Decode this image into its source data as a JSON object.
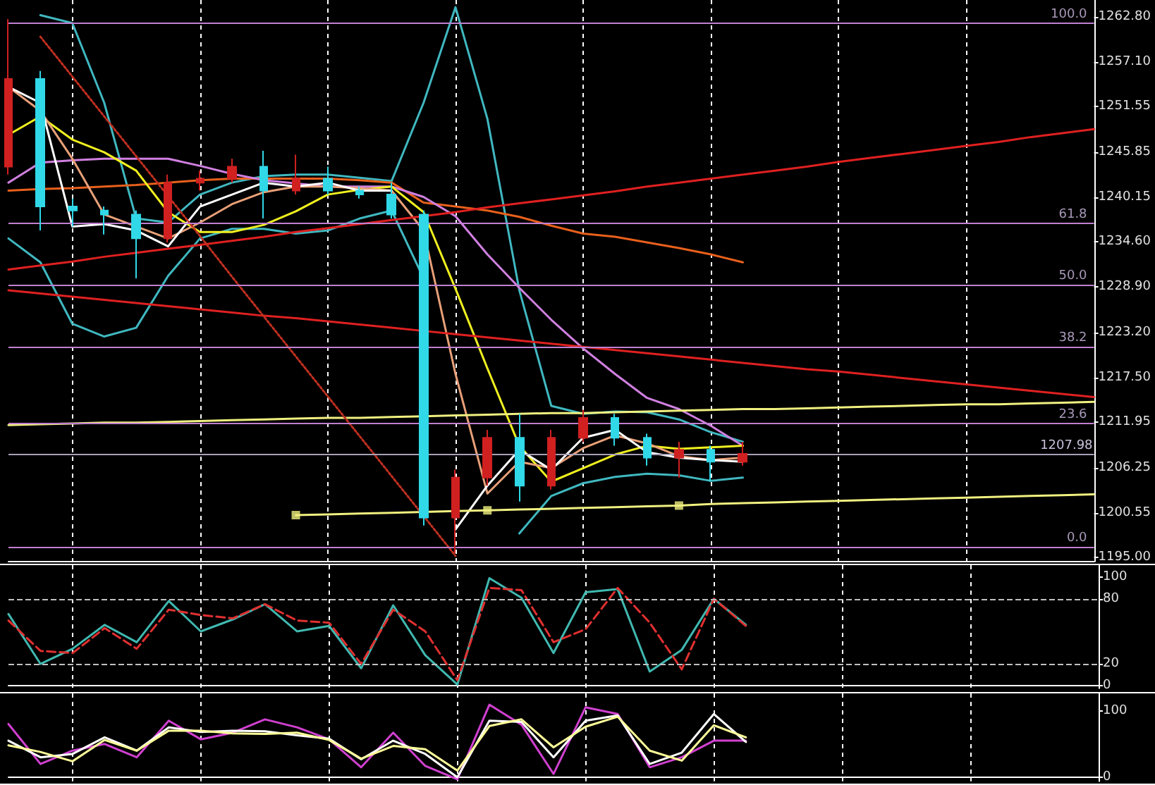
{
  "chart_data": [
    {
      "type": "candlestick",
      "categories": [
        null,
        null,
        null,
        null,
        null,
        null,
        null,
        null,
        null,
        null,
        null,
        null,
        null,
        null,
        null,
        null,
        null,
        null,
        null,
        null,
        null,
        null,
        null,
        null,
        null,
        null,
        null,
        null,
        null,
        null,
        null,
        null,
        null,
        null,
        null
      ],
      "ylim": [
        1194.5,
        1264.9
      ],
      "yticks": [
        {
          "value": 1195,
          "label": "1195.00"
        },
        {
          "value": 1200.55,
          "label": "1200.55"
        },
        {
          "value": 1206.25,
          "label": "1206.25"
        },
        {
          "value": 1211.95,
          "label": "1211.95"
        },
        {
          "value": 1217.5,
          "label": "1217.50"
        },
        {
          "value": 1223.2,
          "label": "1223.20"
        },
        {
          "value": 1228.9,
          "label": "1228.90"
        },
        {
          "value": 1234.6,
          "label": "1234.60"
        },
        {
          "value": 1240.15,
          "label": "1240.15"
        },
        {
          "value": 1245.85,
          "label": "1245.85"
        },
        {
          "value": 1251.55,
          "label": "1251.55"
        },
        {
          "value": 1257.1,
          "label": "1257.10"
        },
        {
          "value": 1262.8,
          "label": "1262.80"
        }
      ],
      "grid": "x",
      "tick_labels": "y",
      "ohlc": [
        [
          1244,
          1262.5,
          1243,
          1255
        ],
        [
          1255,
          1256,
          1236,
          1239
        ],
        [
          1239,
          1240,
          1236.5,
          1238.5
        ],
        [
          1238.5,
          1239,
          1235.5,
          1238
        ],
        [
          1238,
          1238.5,
          1230,
          1235
        ],
        [
          1235,
          1243,
          1234.5,
          1242
        ],
        [
          1242,
          1243.5,
          1241,
          1242.5
        ],
        [
          1242.5,
          1245,
          1242,
          1244
        ],
        [
          1244,
          1246,
          1237.5,
          1241
        ],
        [
          1241,
          1245.5,
          1240.5,
          1242.5
        ],
        [
          1242.5,
          1244,
          1240.5,
          1241
        ],
        [
          1241,
          1241.5,
          1240,
          1240.5
        ],
        [
          1240.5,
          1242,
          1237.5,
          1238
        ],
        [
          1238,
          1238.5,
          1199,
          1200
        ],
        [
          1200,
          1206,
          1195.5,
          1205
        ],
        [
          1205,
          1211,
          1204,
          1210
        ],
        [
          1210,
          1213,
          1202,
          1204
        ],
        [
          1204,
          1211,
          1203.5,
          1210
        ],
        [
          1210,
          1213.5,
          1209.5,
          1212.5
        ],
        [
          1212.5,
          1213,
          1209,
          1210
        ],
        [
          1210,
          1210.5,
          1206.5,
          1207.5
        ],
        [
          1207.5,
          1209.5,
          1205,
          1208.5
        ],
        [
          1208.5,
          1209,
          1204.5,
          1207
        ],
        [
          1207,
          1209.5,
          1206.5,
          1207.98
        ],
        null,
        null,
        null,
        null,
        null,
        null,
        null,
        null,
        null,
        null,
        null
      ],
      "colors": [
        "#d02020",
        "#30d8e8",
        "#30d8e8",
        "#30d8e8",
        "#30d8e8",
        "#d02020",
        "#d02020",
        "#d02020",
        "#30d8e8",
        "#d02020",
        "#30d8e8",
        "#30d8e8",
        "#30d8e8",
        "#30d8e8",
        "#d02020",
        "#d02020",
        "#30d8e8",
        "#d02020",
        "#d02020",
        "#30d8e8",
        "#30d8e8",
        "#d02020",
        "#30d8e8",
        "#d02020",
        null,
        null,
        null,
        null,
        null,
        null,
        null,
        null,
        null,
        null,
        null
      ],
      "series": [
        {
          "type": "line",
          "color": "#40b8c0",
          "values": [
            null,
            1263,
            1262,
            1252,
            1237.5,
            1237,
            1240.5,
            1242,
            1242.8,
            1243,
            1243,
            1242.6,
            1242.2,
            1252,
            1264,
            1250,
            1228.5,
            1214,
            1213,
            1213.3,
            1213.2,
            1212.3,
            1210.7,
            1209.5,
            null,
            null,
            null,
            null,
            null,
            null,
            null,
            null,
            null,
            null,
            null
          ]
        },
        {
          "type": "line",
          "color": "#40b8c0",
          "values": [
            1235,
            1232,
            1224.3,
            1222.7,
            1223.8,
            1230.3,
            1235,
            1236.2,
            1236.2,
            1235.6,
            1236,
            1237.5,
            1238.5,
            1230,
            null,
            null,
            1198,
            1202.7,
            1204.3,
            1205.1,
            1205.5,
            1205.3,
            1204.6,
            1205,
            null,
            null,
            null,
            null,
            null,
            null,
            null,
            null,
            null,
            null,
            null
          ]
        },
        {
          "type": "line",
          "color": "#e8601c",
          "values": [
            1241,
            1241.2,
            1241.3,
            1241.5,
            1241.7,
            1242,
            1242.3,
            1242.5,
            1242.5,
            1242.5,
            1242.5,
            1242.3,
            1242,
            1239.5,
            1239,
            1238.5,
            1237.7,
            1236.6,
            1235.6,
            1235.2,
            1234.5,
            1233.8,
            1233,
            1232,
            null,
            null,
            null,
            null,
            null,
            null,
            null,
            null,
            null,
            null,
            null
          ]
        },
        {
          "type": "line",
          "color": "#d080e0",
          "values": [
            1242,
            1244.5,
            1244.8,
            1245,
            1245,
            1245,
            1244.1,
            1243.1,
            1242.3,
            1241.9,
            1241.5,
            1241.5,
            1241.5,
            1240.2,
            1237.8,
            1233,
            1228.8,
            1224.8,
            1221.2,
            1218,
            1215,
            1213.6,
            1211.5,
            1209,
            null,
            null,
            null,
            null,
            null,
            null,
            null,
            null,
            null,
            null,
            null
          ]
        },
        {
          "type": "line",
          "color": "#f0f020",
          "values": [
            1248,
            1250.3,
            1247.4,
            1245.8,
            1243.5,
            1238.3,
            1235.8,
            1235.8,
            1236.7,
            1238.4,
            1240.5,
            1241.1,
            1241.5,
            1238.3,
            1228.7,
            1218.7,
            1209,
            1204.5,
            1206.2,
            1207.9,
            1209,
            1208.6,
            1208.8,
            1209,
            null,
            null,
            null,
            null,
            null,
            null,
            null,
            null,
            null,
            null,
            null
          ]
        },
        {
          "type": "line",
          "color": "#e8a078",
          "values": [
            1254,
            1251,
            1245,
            1238,
            1236.5,
            1235,
            1237,
            1239.3,
            1240.8,
            1241.5,
            1241.5,
            1241.3,
            1241,
            1236,
            1218,
            1203,
            1207,
            1206.2,
            1208.7,
            1210.3,
            1209.3,
            1207.7,
            1207.2,
            1207.5,
            null,
            null,
            null,
            null,
            null,
            null,
            null,
            null,
            null,
            null,
            null
          ]
        },
        {
          "type": "line",
          "color": "#ffffff",
          "values": [
            1254,
            1252,
            1236.5,
            1236.8,
            1236,
            1234,
            1239,
            1240.5,
            1242,
            1241.5,
            1242,
            1241,
            1241,
            null,
            1198.5,
            1204,
            1208.5,
            1206,
            1210,
            1211,
            1208.2,
            1207.5,
            1207.2,
            1207,
            null,
            null,
            null,
            null,
            null,
            null,
            null,
            null,
            null,
            null,
            null
          ]
        },
        {
          "type": "line",
          "color": "#e02020",
          "values": [
            1231.1,
            1231.6,
            1232.1,
            1232.7,
            1233.2,
            1233.7,
            1234.2,
            1234.7,
            1235.2,
            1235.8,
            1236.3,
            1236.8,
            1237.3,
            1237.8,
            1238.3,
            1238.9,
            1239.4,
            1239.9,
            1240.4,
            1240.9,
            1241.5,
            1242,
            1242.5,
            1243,
            1243.5,
            1244,
            1244.6,
            1245.1,
            1245.6,
            1246.1,
            1246.6,
            1247.1,
            1247.7,
            1248.2,
            1248.7
          ]
        },
        {
          "type": "line",
          "color": "#e02020",
          "values": [
            1228.5,
            1228.1,
            1227.7,
            1227.3,
            1226.9,
            1226.5,
            1226.1,
            1225.7,
            1225.3,
            1225,
            1224.6,
            1224.2,
            1223.8,
            1223.4,
            1223,
            1222.6,
            1222.2,
            1221.8,
            1221.4,
            1221,
            1220.6,
            1220.2,
            1219.8,
            1219.4,
            1219,
            1218.6,
            1218.3,
            1217.9,
            1217.5,
            1217.1,
            1216.7,
            1216.3,
            1215.9,
            1215.5,
            1215.1
          ]
        },
        {
          "type": "line",
          "color": "#f0f080",
          "values": [
            1211.6,
            1211.7,
            1211.8,
            1211.9,
            1211.9,
            1212,
            1212.1,
            1212.2,
            1212.3,
            1212.4,
            1212.5,
            1212.5,
            1212.6,
            1212.7,
            1212.8,
            1212.9,
            1213,
            1213.1,
            1213.1,
            1213.2,
            1213.3,
            1213.4,
            1213.5,
            1213.6,
            1213.6,
            1213.7,
            1213.8,
            1213.9,
            1214,
            1214.1,
            1214.2,
            1214.2,
            1214.3,
            1214.4,
            1214.5
          ]
        },
        {
          "type": "line",
          "color": "#f0f080",
          "values": [
            null,
            null,
            null,
            null,
            null,
            null,
            null,
            null,
            null,
            1200.3,
            1200.4,
            1200.5,
            1200.6,
            1200.7,
            1200.8,
            1200.9,
            1201,
            1201.1,
            1201.2,
            1201.3,
            1201.4,
            1201.5,
            1201.7,
            1201.8,
            1201.9,
            1202,
            1202.1,
            1202.2,
            1202.3,
            1202.4,
            1202.5,
            1202.6,
            1202.7,
            1202.8,
            1202.9
          ]
        },
        {
          "type": "scatter",
          "color": "#f0f080",
          "marker": "square",
          "values": [
            null,
            null,
            null,
            null,
            null,
            null,
            null,
            null,
            null,
            1200.3,
            null,
            null,
            null,
            null,
            null,
            1200.9,
            null,
            null,
            null,
            null,
            null,
            1201.5,
            null,
            null,
            null,
            null,
            null,
            null,
            null,
            null,
            null,
            null,
            null,
            null,
            null
          ]
        },
        {
          "type": "line",
          "color": "#c03020",
          "line_style": "dotted",
          "values": [
            null,
            1260.3,
            1255.3,
            1250.3,
            1245.3,
            1240.3,
            1235.3,
            1230.2,
            1225.2,
            1220.2,
            1215.2,
            1210.2,
            1205.2,
            1200.2,
            1195.2,
            null,
            null,
            null,
            null,
            null,
            null,
            null,
            null,
            null,
            null,
            null,
            null,
            null,
            null,
            null,
            null,
            null,
            null,
            null,
            null
          ]
        }
      ],
      "ref_lines": [
        {
          "axis": "y",
          "value": 1262,
          "color": "#c080d0"
        },
        {
          "axis": "y",
          "value": 1236.9,
          "color": "#c080d0"
        },
        {
          "axis": "y",
          "value": 1229.2,
          "color": "#c080d0"
        },
        {
          "axis": "y",
          "value": 1221.4,
          "color": "#c080d0"
        },
        {
          "axis": "y",
          "value": 1211.8,
          "color": "#c080d0"
        },
        {
          "axis": "y",
          "value": 1196.3,
          "color": "#c080d0"
        },
        {
          "axis": "y",
          "value": 1207.98,
          "label": "1207.98",
          "color": "#a8a0b8"
        }
      ],
      "annotations": [
        {
          "text": "100.0",
          "y": 1262
        },
        {
          "text": "61.8",
          "y": 1236.9
        },
        {
          "text": "50.0",
          "y": 1229.2
        },
        {
          "text": "38.2",
          "y": 1221.4
        },
        {
          "text": "23.6",
          "y": 1211.8
        },
        {
          "text": "0.0",
          "y": 1196.3
        }
      ]
    },
    {
      "type": "line",
      "categories": [
        null,
        null,
        null,
        null,
        null,
        null,
        null,
        null,
        null,
        null,
        null,
        null,
        null,
        null,
        null,
        null,
        null,
        null,
        null,
        null,
        null,
        null,
        null,
        null,
        null,
        null,
        null,
        null,
        null,
        null,
        null,
        null,
        null,
        null,
        null
      ],
      "ylim": [
        -2.5,
        111
      ],
      "yticks": [
        0,
        20,
        80,
        100
      ],
      "grid": "x",
      "tick_labels": "y",
      "ref_lines": [
        {
          "axis": "y",
          "value": 20,
          "color": "#c0c0c0",
          "line_style": "dashed"
        },
        {
          "axis": "y",
          "value": 80,
          "color": "#c0c0c0",
          "line_style": "dashed"
        }
      ],
      "series": [
        {
          "color": "#40b8b0",
          "values": [
            66,
            20,
            34,
            56,
            40,
            78,
            50,
            61,
            75,
            50,
            55,
            16,
            74,
            28,
            1,
            99,
            81,
            30,
            86,
            89,
            13,
            33,
            80,
            56,
            null,
            null,
            null,
            null,
            null,
            null,
            null,
            null,
            null,
            null,
            null
          ]
        },
        {
          "color": "#e03030",
          "line_style": "dashed",
          "values": [
            60,
            32,
            30,
            53,
            34,
            70,
            65,
            62,
            75,
            60,
            58,
            20,
            70,
            50,
            5,
            90,
            88,
            40,
            52,
            90,
            58,
            15,
            80,
            55,
            null,
            null,
            null,
            null,
            null,
            null,
            null,
            null,
            null,
            null,
            null
          ]
        }
      ]
    },
    {
      "type": "line",
      "categories": [
        null,
        null,
        null,
        null,
        null,
        null,
        null,
        null,
        null,
        null,
        null,
        null,
        null,
        null,
        null,
        null,
        null,
        null,
        null,
        null,
        null,
        null,
        null,
        null,
        null,
        null,
        null,
        null,
        null,
        null,
        null,
        null,
        null,
        null,
        null
      ],
      "ylim": [
        -6,
        126
      ],
      "yticks": [
        0,
        100
      ],
      "grid": "x",
      "tick_labels": "y",
      "series": [
        {
          "color": "#d040d0",
          "values": [
            80,
            20,
            40,
            50,
            30,
            85,
            57,
            67,
            87,
            75,
            57,
            15,
            67,
            17,
            -3,
            109,
            79,
            5,
            105,
            95,
            15,
            30,
            55,
            55,
            null,
            null,
            null,
            null,
            null,
            null,
            null,
            null,
            null,
            null,
            null
          ]
        },
        {
          "color": "#ffffff",
          "values": [
            55,
            30,
            35,
            60,
            40,
            75,
            68,
            70,
            69,
            63,
            58,
            27,
            55,
            35,
            0,
            85,
            83,
            30,
            85,
            93,
            20,
            37,
            95,
            53,
            null,
            null,
            null,
            null,
            null,
            null,
            null,
            null,
            null,
            null,
            null
          ]
        },
        {
          "color": "#ffff99",
          "values": [
            48,
            38,
            24,
            56,
            40,
            70,
            70,
            66,
            65,
            67,
            56,
            28,
            47,
            42,
            10,
            77,
            87,
            45,
            76,
            91,
            40,
            25,
            78,
            60,
            null,
            null,
            null,
            null,
            null,
            null,
            null,
            null,
            null,
            null,
            null
          ]
        }
      ]
    }
  ]
}
